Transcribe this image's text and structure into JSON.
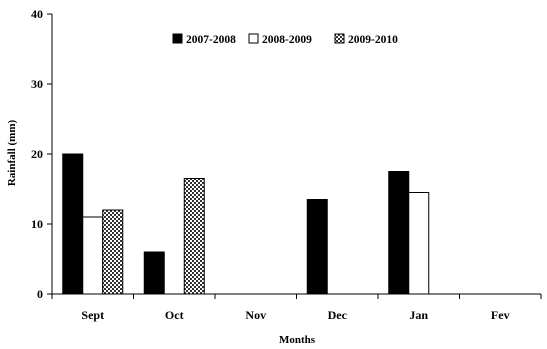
{
  "chart_data": {
    "type": "bar",
    "title": "",
    "xlabel": "Months",
    "ylabel": "Rainfall (mm)",
    "ylim": [
      0,
      40
    ],
    "yticks": [
      0,
      10,
      20,
      30,
      40
    ],
    "grid": false,
    "legend_position": "top-center",
    "categories": [
      "Sept",
      "Oct",
      "Nov",
      "Dec",
      "Jan",
      "Fev"
    ],
    "series": [
      {
        "name": "2007-2008",
        "values": [
          20,
          6,
          0,
          13.5,
          17.5,
          0
        ],
        "fill": "solid-black"
      },
      {
        "name": "2008-2009",
        "values": [
          11,
          0,
          0,
          0,
          14.5,
          0
        ],
        "fill": "white"
      },
      {
        "name": "2009-2010",
        "values": [
          12,
          16.5,
          0,
          0,
          0,
          0
        ],
        "fill": "checkered"
      }
    ]
  }
}
